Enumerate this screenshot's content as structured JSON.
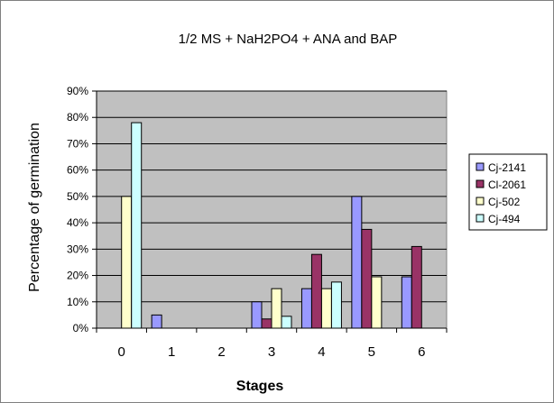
{
  "chart_data": {
    "type": "bar",
    "title": "1/2 MS + NaH2PO4 + ANA and BAP",
    "xlabel": "Stages",
    "ylabel": "Percentage of germination",
    "categories": [
      "0",
      "1",
      "2",
      "3",
      "4",
      "5",
      "6"
    ],
    "ylim": [
      0,
      90
    ],
    "yticks": [
      "0%",
      "10%",
      "20%",
      "30%",
      "40%",
      "50%",
      "60%",
      "70%",
      "80%",
      "90%"
    ],
    "grid": true,
    "legend_position": "right",
    "plot_background": "#c0c0c0",
    "series": [
      {
        "name": "Cj-2141",
        "color": "#9999ff",
        "values": [
          0,
          5,
          0,
          10,
          15,
          50,
          19.5
        ]
      },
      {
        "name": "Cl-2061",
        "color": "#993366",
        "values": [
          0,
          0,
          0,
          3.5,
          28,
          37.5,
          31
        ]
      },
      {
        "name": "Cj-502",
        "color": "#ffffcc",
        "values": [
          50,
          0,
          0,
          15,
          15,
          19.5,
          0
        ]
      },
      {
        "name": "Cj-494",
        "color": "#ccffff",
        "values": [
          78,
          0,
          0,
          4.5,
          17.5,
          0,
          0
        ]
      }
    ]
  }
}
